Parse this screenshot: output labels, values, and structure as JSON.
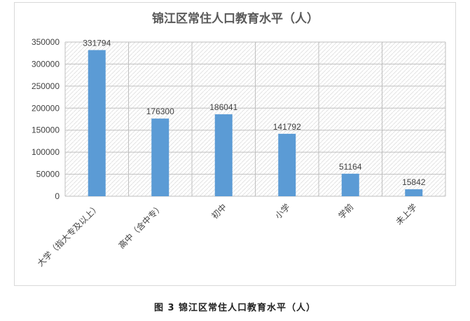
{
  "caption": "图 3 锦江区常住人口教育水平（人）",
  "colors": {
    "bar": "#5B9BD5",
    "grid": "#bfbfbf",
    "axis": "#d9d9d9",
    "text": "#404040",
    "title": "#595959"
  },
  "chart_data": {
    "type": "bar",
    "title": "锦江区常住人口教育水平（人）",
    "xlabel": "",
    "ylabel": "",
    "categories": [
      "大学（指大专及以上）",
      "高中（含中专）",
      "初中",
      "小学",
      "学前",
      "未上学"
    ],
    "values": [
      331794,
      176300,
      186041,
      141792,
      51164,
      15842
    ],
    "data_labels": [
      "331794",
      "176300",
      "186041",
      "141792",
      "51164",
      "15842"
    ],
    "ylim": [
      0,
      350000
    ],
    "yticks": [
      0,
      50000,
      100000,
      150000,
      200000,
      250000,
      300000,
      350000
    ],
    "ytick_labels": [
      "0",
      "50000",
      "100000",
      "150000",
      "200000",
      "250000",
      "300000",
      "350000"
    ],
    "grid": true,
    "plot_area_pattern": "diagonal-hatch",
    "legend": "none"
  }
}
